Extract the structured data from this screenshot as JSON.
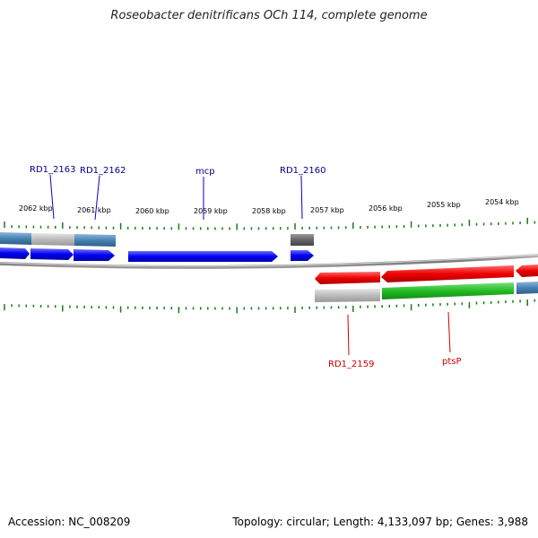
{
  "title": "Roseobacter denitrificans OCh 114, complete genome",
  "footer": {
    "accession": "Accession: NC_008209",
    "summary": "Topology: circular; Length: 4,133,097 bp; Genes: 3,988"
  },
  "tick_labels": [
    "2062 kbp",
    "2061 kbp",
    "2060 kbp",
    "2059 kbp",
    "2058 kbp",
    "2057 kbp",
    "2056 kbp",
    "2055 kbp",
    "2054 kbp"
  ],
  "gene_labels": {
    "top": [
      "RD1_2163",
      "RD1_2162",
      "mcp",
      "RD1_2160"
    ],
    "bottom": [
      "RD1_2159",
      "ptsP"
    ]
  },
  "colors": {
    "forward_cds": "#0000ee",
    "reverse_cds": "#ee0000",
    "reverse_green": "#22bb22",
    "steel_blue": "#4682b4",
    "light_gray": "#bbbbbb",
    "dark_gray": "#666666",
    "backbone": "#888888",
    "tick": "#1a7a1a",
    "label_blue": "#00008b",
    "label_red": "#cc0000"
  }
}
